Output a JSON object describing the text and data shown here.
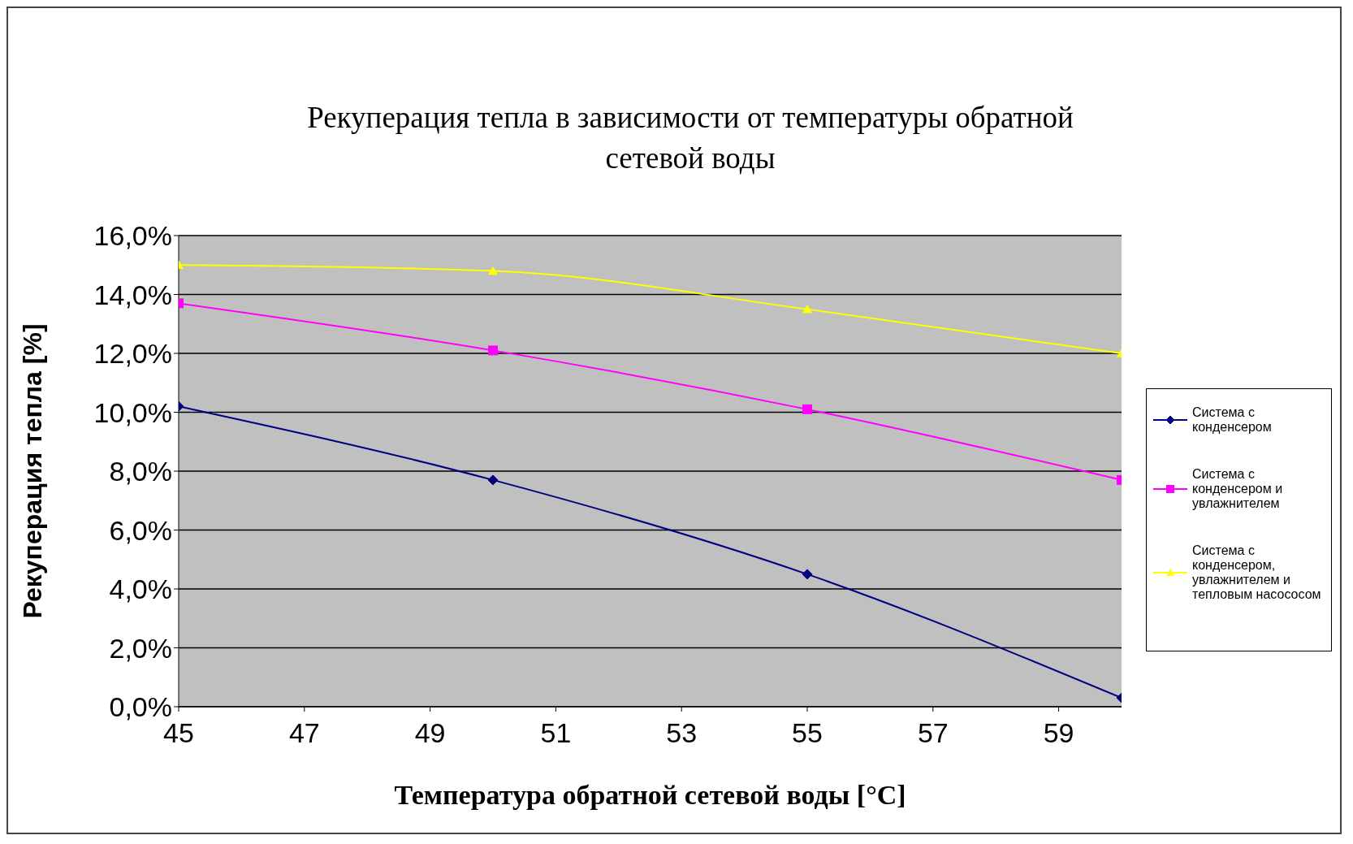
{
  "chart_data": {
    "type": "line",
    "title": "Рекуперация тепла в зависимости от температуры обратной сетевой воды",
    "xlabel": "Температура обратной сетевой воды [°C]",
    "ylabel": "Рекуперация тепла [%]",
    "x": [
      45,
      50,
      55,
      60
    ],
    "series": [
      {
        "name": "Система с конденсером",
        "color": "#000080",
        "marker": "diamond",
        "values": [
          10.2,
          7.7,
          4.5,
          0.3
        ]
      },
      {
        "name": "Система с конденсером и увлажнителем",
        "color": "#ff00ff",
        "marker": "square",
        "values": [
          13.7,
          12.1,
          10.1,
          7.7
        ]
      },
      {
        "name": "Система с конденсером, увлажнителем и тепловым насососом",
        "color": "#ffff00",
        "marker": "triangle",
        "values": [
          15.0,
          14.8,
          13.5,
          12.0
        ]
      }
    ],
    "xlim": [
      45,
      60
    ],
    "xticks": [
      45,
      47,
      49,
      51,
      53,
      55,
      57,
      59
    ],
    "ylim": [
      0,
      16
    ],
    "yticks": [
      {
        "value": 0,
        "label": "0,0%"
      },
      {
        "value": 2,
        "label": "2,0%"
      },
      {
        "value": 4,
        "label": "4,0%"
      },
      {
        "value": 6,
        "label": "6,0%"
      },
      {
        "value": 8,
        "label": "8,0%"
      },
      {
        "value": 10,
        "label": "10,0%"
      },
      {
        "value": 12,
        "label": "12,0%"
      },
      {
        "value": 14,
        "label": "14,0%"
      },
      {
        "value": 16,
        "label": "16,0%"
      }
    ],
    "grid": "y",
    "legend": "right",
    "line_style": "solid"
  }
}
